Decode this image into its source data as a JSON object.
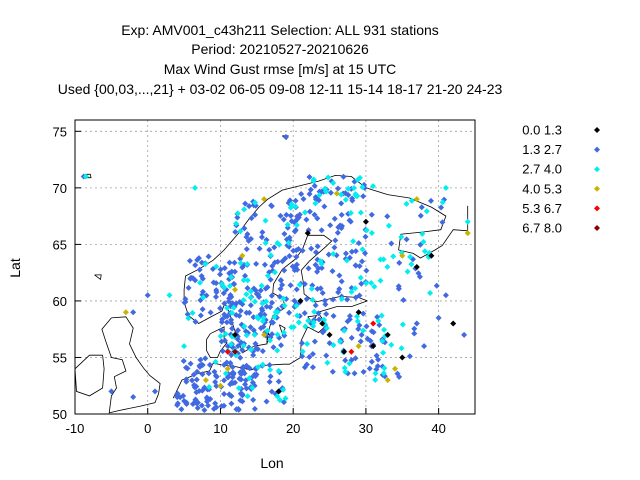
{
  "chart_data": {
    "type": "scatter",
    "title_lines": [
      "Exp: AMV001_c43h211   Selection: ALL    931 stations",
      "Period: 20210527-20210626",
      "Max Wind Gust rmse [m/s] at  15 UTC",
      "Used {00,03,...,21} + 03-02 06-05 09-08 12-11 15-14 18-17 21-20 24-23"
    ],
    "xlabel": "Lon",
    "ylabel": "Lat",
    "xlim": [
      -10,
      45
    ],
    "ylim": [
      50,
      76
    ],
    "xticks": [
      -10,
      0,
      10,
      20,
      30,
      40
    ],
    "yticks": [
      50,
      55,
      60,
      65,
      70,
      75
    ],
    "grid": true,
    "legend_position": "right",
    "series": [
      {
        "name": "0.0 1.3",
        "color": "#000000",
        "points": [
          [
            37,
            63
          ],
          [
            25,
            57
          ],
          [
            33,
            57
          ],
          [
            31,
            56
          ],
          [
            27,
            55.5
          ],
          [
            24,
            58
          ],
          [
            35,
            55
          ],
          [
            22,
            66
          ],
          [
            30,
            67
          ],
          [
            39,
            64
          ],
          [
            21,
            60
          ],
          [
            12,
            57
          ],
          [
            18,
            52
          ],
          [
            42,
            58
          ],
          [
            29,
            59
          ]
        ]
      },
      {
        "name": "1.3 2.7",
        "color": "#4169e1",
        "points": []
      },
      {
        "name": "2.7 4.0",
        "color": "#00eeee",
        "points": []
      },
      {
        "name": "4.0 5.3",
        "color": "#c8b400",
        "points": [
          [
            -3,
            59
          ],
          [
            16,
            69
          ],
          [
            37,
            69
          ],
          [
            44,
            66
          ],
          [
            34,
            54
          ],
          [
            33,
            53
          ],
          [
            11,
            54
          ],
          [
            10,
            52.5
          ],
          [
            8,
            53
          ],
          [
            12,
            61
          ],
          [
            29,
            56
          ],
          [
            35,
            64
          ],
          [
            26,
            69.5
          ],
          [
            16,
            57
          ],
          [
            13,
            64
          ]
        ]
      },
      {
        "name": "5.3 6.7",
        "color": "#ff0000",
        "points": [
          [
            31,
            58
          ],
          [
            28,
            55.5
          ],
          [
            11,
            55.5
          ]
        ]
      },
      {
        "name": "6.7 8.0",
        "color": "#8b0000",
        "points": [
          [
            12,
            55.5
          ]
        ]
      }
    ]
  }
}
